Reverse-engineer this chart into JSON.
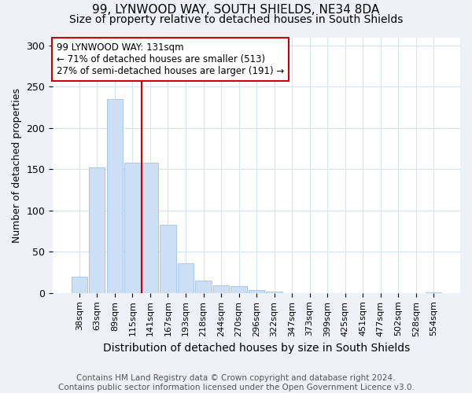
{
  "title": "99, LYNWOOD WAY, SOUTH SHIELDS, NE34 8DA",
  "subtitle": "Size of property relative to detached houses in South Shields",
  "xlabel": "Distribution of detached houses by size in South Shields",
  "ylabel": "Number of detached properties",
  "categories": [
    "38sqm",
    "63sqm",
    "89sqm",
    "115sqm",
    "141sqm",
    "167sqm",
    "193sqm",
    "218sqm",
    "244sqm",
    "270sqm",
    "296sqm",
    "322sqm",
    "347sqm",
    "373sqm",
    "399sqm",
    "425sqm",
    "451sqm",
    "477sqm",
    "502sqm",
    "528sqm",
    "554sqm"
  ],
  "values": [
    20,
    152,
    235,
    158,
    158,
    83,
    36,
    15,
    9,
    8,
    4,
    2,
    0,
    0,
    0,
    0,
    0,
    0,
    0,
    0,
    1
  ],
  "bar_color": "#ccdff5",
  "bar_edge_color": "#aac8e8",
  "vline_x_index": 3.5,
  "vline_color": "#cc0000",
  "annotation_text": "99 LYNWOOD WAY: 131sqm\n← 71% of detached houses are smaller (513)\n27% of semi-detached houses are larger (191) →",
  "annotation_box_color": "white",
  "annotation_box_edge": "#cc0000",
  "ylim": [
    0,
    310
  ],
  "yticks": [
    0,
    50,
    100,
    150,
    200,
    250,
    300
  ],
  "footer": "Contains HM Land Registry data © Crown copyright and database right 2024.\nContains public sector information licensed under the Open Government Licence v3.0.",
  "bg_color": "#eef2f8",
  "plot_bg_color": "#ffffff",
  "grid_color": "#d8e4f0",
  "title_fontsize": 11,
  "subtitle_fontsize": 10,
  "xlabel_fontsize": 10,
  "ylabel_fontsize": 9,
  "footer_fontsize": 7.5,
  "annotation_fontsize": 8.5
}
